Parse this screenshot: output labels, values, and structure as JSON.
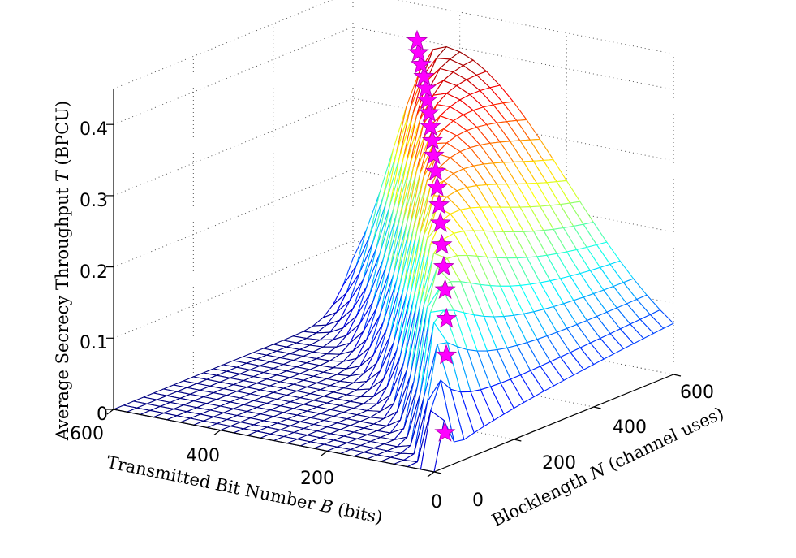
{
  "chart_data": {
    "type": "surface3d",
    "title": "",
    "zlabel": {
      "pre": "Average Secrecy Throughput ",
      "sym": "T",
      "post": " (BPCU)"
    },
    "xlabel": {
      "pre": "Transmitted Bit Number ",
      "sym": "B",
      "post": " (bits)"
    },
    "ylabel": {
      "pre": "Blocklength ",
      "sym": "N",
      "post": " (channel uses)"
    },
    "x_axis": {
      "name": "B",
      "range": [
        0,
        600
      ],
      "ticks": [
        "0",
        "200",
        "400",
        "600"
      ]
    },
    "y_axis": {
      "name": "N",
      "range": [
        0,
        600
      ],
      "ticks": [
        "0",
        "200",
        "400",
        "600"
      ]
    },
    "z_axis": {
      "name": "T",
      "range": [
        0,
        0.45
      ],
      "ticks": [
        "0",
        "0.1",
        "0.2",
        "0.3",
        "0.4"
      ]
    },
    "grid": true,
    "colormap": "jet",
    "surface_note": "Mesh surface of T(B, N): T rises along the ridge B ≈ 0.72·N and decays toward 0 for B far from the ridge; grid 25 × 25 on B, N in [0, 600].",
    "optimal_points": {
      "marker": "pentagram",
      "color": "#ff00ff",
      "points": [
        {
          "N": 30,
          "B": 2,
          "T": 0.048
        },
        {
          "N": 60,
          "B": 22,
          "T": 0.147
        },
        {
          "N": 90,
          "B": 44,
          "T": 0.188
        },
        {
          "N": 120,
          "B": 69,
          "T": 0.218
        },
        {
          "N": 150,
          "B": 94,
          "T": 0.24
        },
        {
          "N": 180,
          "B": 120,
          "T": 0.26
        },
        {
          "N": 210,
          "B": 145,
          "T": 0.28
        },
        {
          "N": 240,
          "B": 170,
          "T": 0.295
        },
        {
          "N": 270,
          "B": 196,
          "T": 0.309
        },
        {
          "N": 300,
          "B": 221,
          "T": 0.321
        },
        {
          "N": 330,
          "B": 247,
          "T": 0.333
        },
        {
          "N": 360,
          "B": 272,
          "T": 0.343
        },
        {
          "N": 390,
          "B": 298,
          "T": 0.352
        },
        {
          "N": 420,
          "B": 323,
          "T": 0.361
        },
        {
          "N": 450,
          "B": 349,
          "T": 0.368
        },
        {
          "N": 480,
          "B": 374,
          "T": 0.374
        },
        {
          "N": 510,
          "B": 400,
          "T": 0.38
        },
        {
          "N": 540,
          "B": 428,
          "T": 0.386
        },
        {
          "N": 570,
          "B": 455,
          "T": 0.392
        },
        {
          "N": 600,
          "B": 480,
          "T": 0.398
        }
      ]
    }
  }
}
